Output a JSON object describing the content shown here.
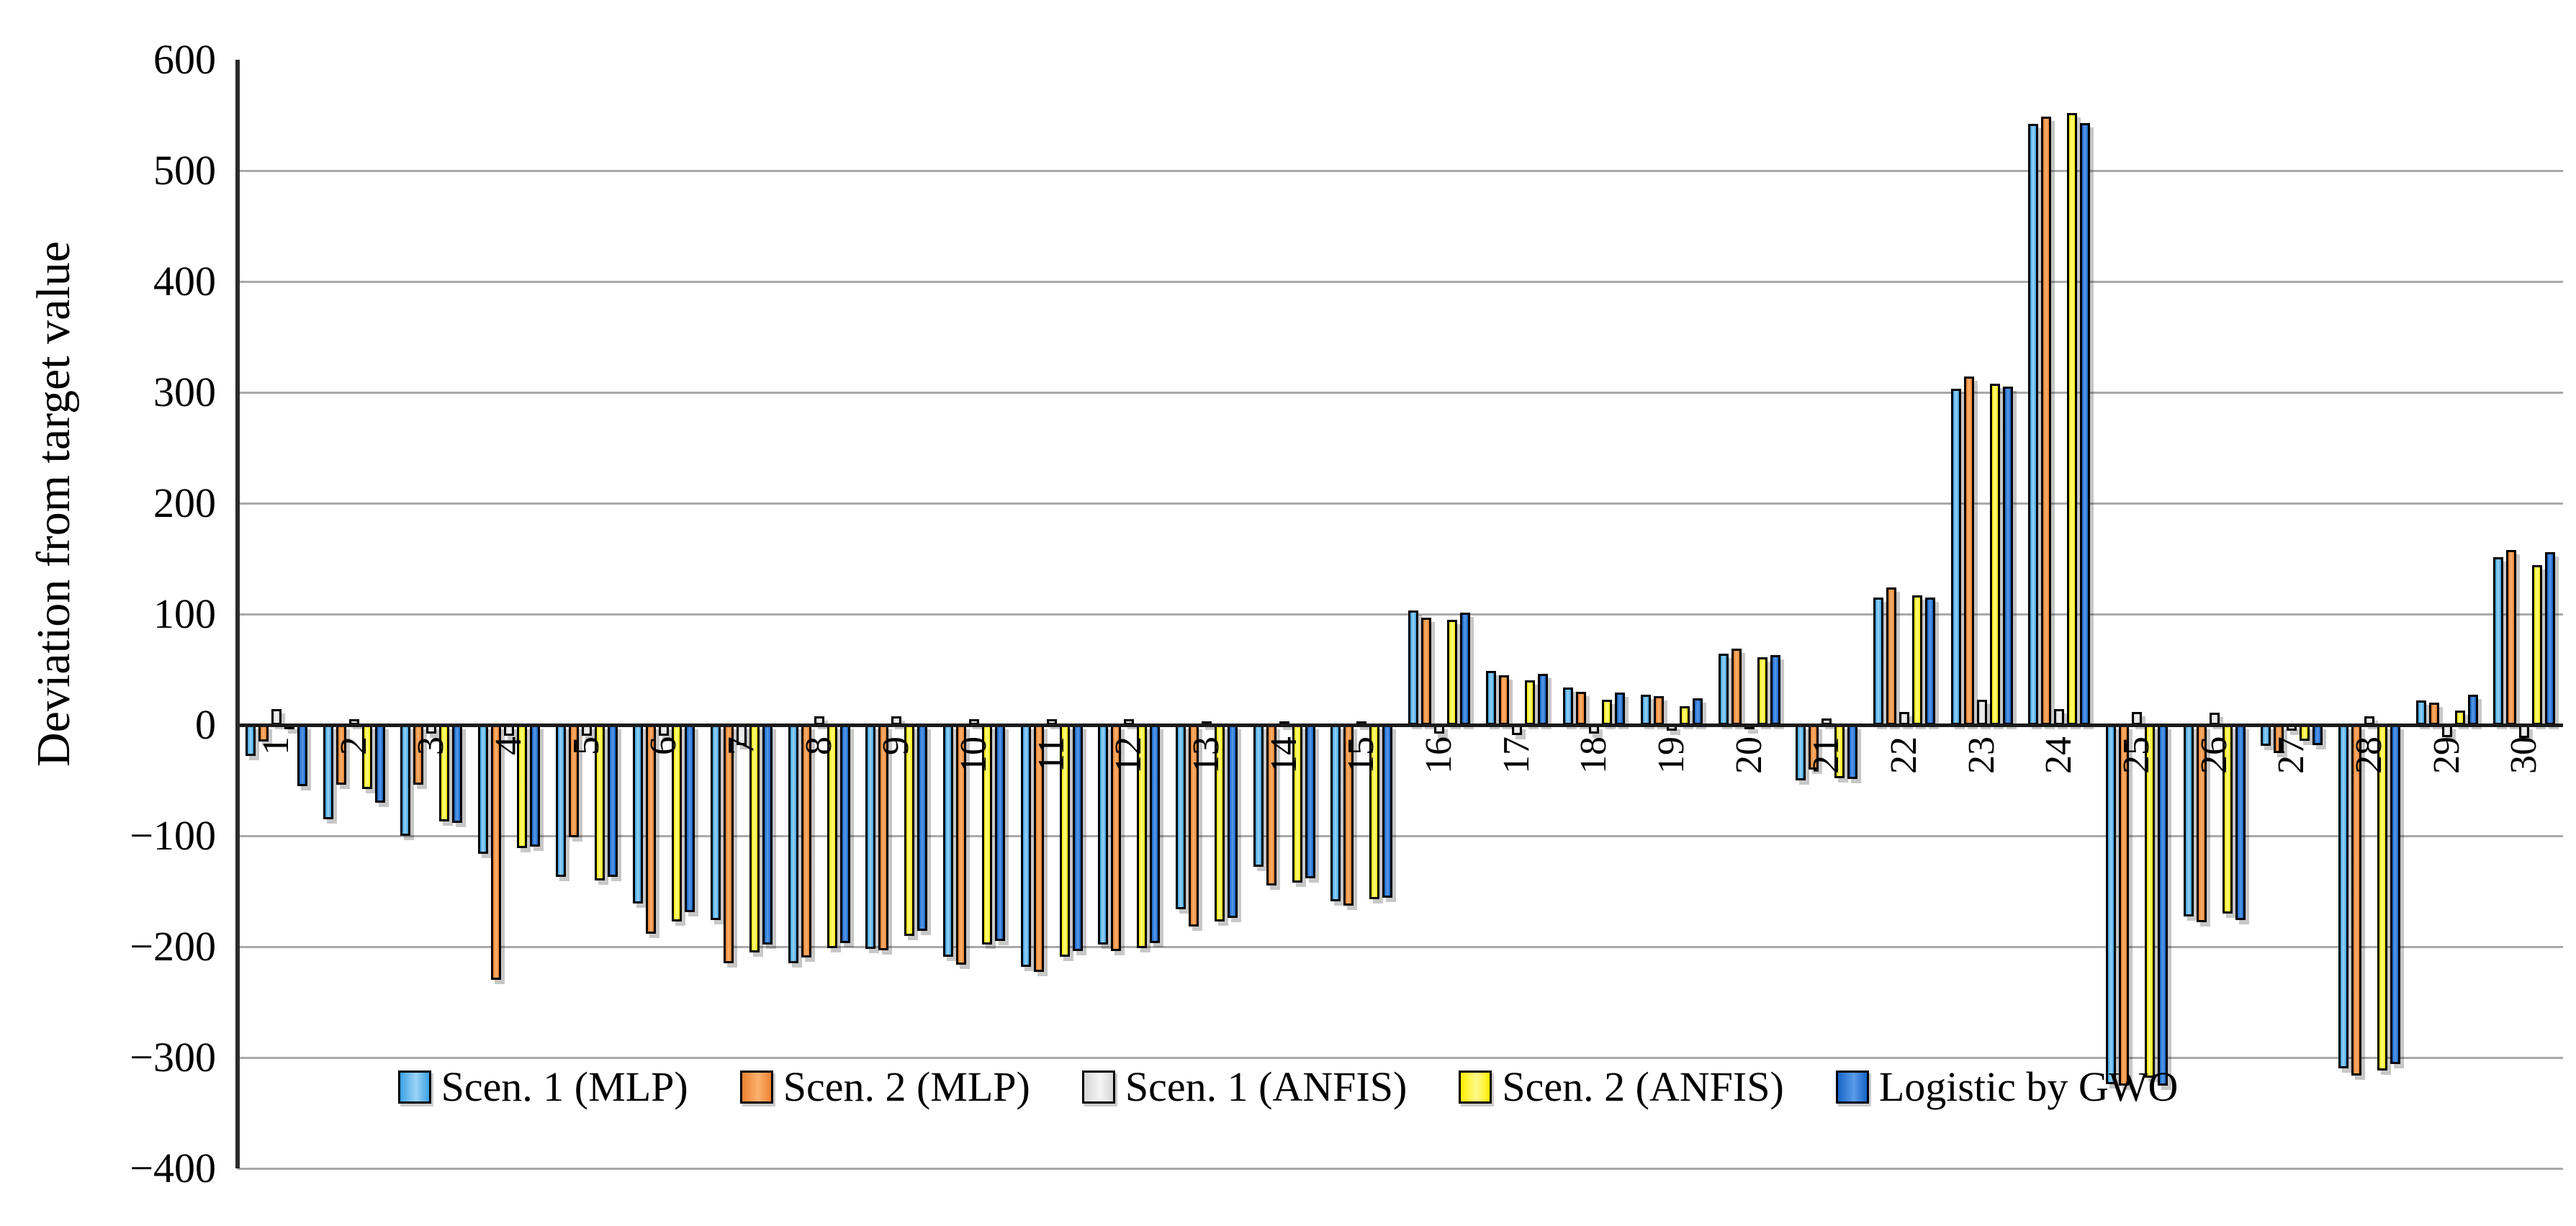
{
  "y_axis": {
    "title": "Deviation from target value",
    "min": -400,
    "max": 600,
    "tick_step": 100,
    "tick_labels": [
      "600",
      "500",
      "400",
      "300",
      "200",
      "100",
      "0",
      "-100",
      "-200",
      "-300",
      "-400"
    ]
  },
  "legend": {
    "position": "bottom",
    "items": [
      {
        "label": "Scen. 1 (MLP)",
        "color": "#3BA2E4"
      },
      {
        "label": "Scen. 2 (MLP)",
        "color": "#F0812F"
      },
      {
        "label": "Scen. 1 (ANFIS)",
        "color": "#D6D6D6"
      },
      {
        "label": "Scen. 2 (ANFIS)",
        "color": "#FEF000"
      },
      {
        "label": "Logistic by GWO",
        "color": "#1565C8"
      }
    ]
  },
  "chart_data": {
    "type": "bar",
    "title": "",
    "xlabel": "",
    "ylabel": "Deviation from target value",
    "ylim": [
      -400,
      600
    ],
    "grid": true,
    "legend_position": "bottom",
    "categories": [
      "1",
      "2",
      "3",
      "4",
      "5",
      "6",
      "7",
      "8",
      "9",
      "10",
      "11",
      "12",
      "13",
      "14",
      "15",
      "16",
      "17",
      "18",
      "19",
      "20",
      "21",
      "22",
      "23",
      "24",
      "25",
      "26",
      "27",
      "28",
      "29",
      "30"
    ],
    "series": [
      {
        "name": "Scen. 1 (MLP)",
        "color": "#3BA2E4",
        "color_mid": "#9AD4F6",
        "values": [
          -28,
          -85,
          -100,
          -116,
          -137,
          -161,
          -176,
          -215,
          -202,
          -209,
          -218,
          -198,
          -166,
          -128,
          -159,
          103,
          49,
          34,
          27,
          64,
          -50,
          115,
          303,
          542,
          -324,
          -173,
          -19,
          -310,
          22,
          151
        ]
      },
      {
        "name": "Scen. 2 (MLP)",
        "color": "#F0812F",
        "color_mid": "#F9B26F",
        "values": [
          -15,
          -54,
          -54,
          -230,
          -101,
          -188,
          -215,
          -210,
          -203,
          -216,
          -223,
          -204,
          -182,
          -145,
          -163,
          97,
          45,
          30,
          26,
          69,
          -40,
          124,
          314,
          549,
          -325,
          -178,
          -25,
          -316,
          20,
          158
        ]
      },
      {
        "name": "Scen. 1 (ANFIS)",
        "color": "#D6D6D6",
        "color_mid": "#F5F5F5",
        "values": [
          14,
          5,
          -8,
          -10,
          -10,
          -10,
          -18,
          8,
          8,
          5,
          5,
          5,
          3,
          3,
          3,
          -8,
          -9,
          -8,
          -5,
          -2,
          6,
          12,
          23,
          14,
          12,
          11,
          -5,
          8,
          -11,
          -12
        ]
      },
      {
        "name": "Scen. 2 (ANFIS)",
        "color": "#FEF000",
        "color_mid": "#FEF98C",
        "values": [
          -3,
          -58,
          -87,
          -111,
          -140,
          -177,
          -205,
          -201,
          -190,
          -198,
          -209,
          -201,
          -177,
          -142,
          -157,
          95,
          40,
          23,
          17,
          61,
          -48,
          117,
          308,
          552,
          -318,
          -170,
          -14,
          -312,
          13,
          144
        ]
      },
      {
        "name": "Logistic by GWO",
        "color": "#1565C8",
        "color_mid": "#5B9BE8",
        "values": [
          -55,
          -70,
          -88,
          -110,
          -137,
          -169,
          -198,
          -197,
          -186,
          -195,
          -204,
          -197,
          -174,
          -138,
          -156,
          101,
          46,
          29,
          24,
          63,
          -49,
          115,
          305,
          543,
          -325,
          -176,
          -18,
          -306,
          27,
          156
        ]
      }
    ]
  }
}
